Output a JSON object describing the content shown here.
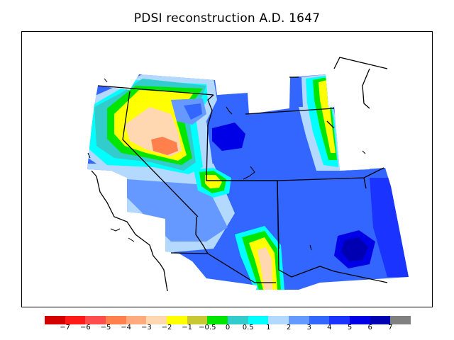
{
  "title": "PDSI reconstruction A.D. 1647",
  "legend": {
    "colors": [
      "#d40000",
      "#ff1a1a",
      "#ff4d4d",
      "#ff7f4d",
      "#ffab7f",
      "#ffd7b0",
      "#ffff00",
      "#c8c832",
      "#00e600",
      "#33cccc",
      "#00ffff",
      "#b3d9ff",
      "#6699ff",
      "#3366ff",
      "#1a33ff",
      "#0000e6",
      "#0000b3",
      "#808080"
    ],
    "labels": [
      "−7",
      "−6",
      "−5",
      "−4",
      "−3",
      "−2",
      "−1",
      "−0.5",
      "0",
      "0.5",
      "1",
      "2",
      "3",
      "4",
      "5",
      "6",
      "7"
    ]
  }
}
